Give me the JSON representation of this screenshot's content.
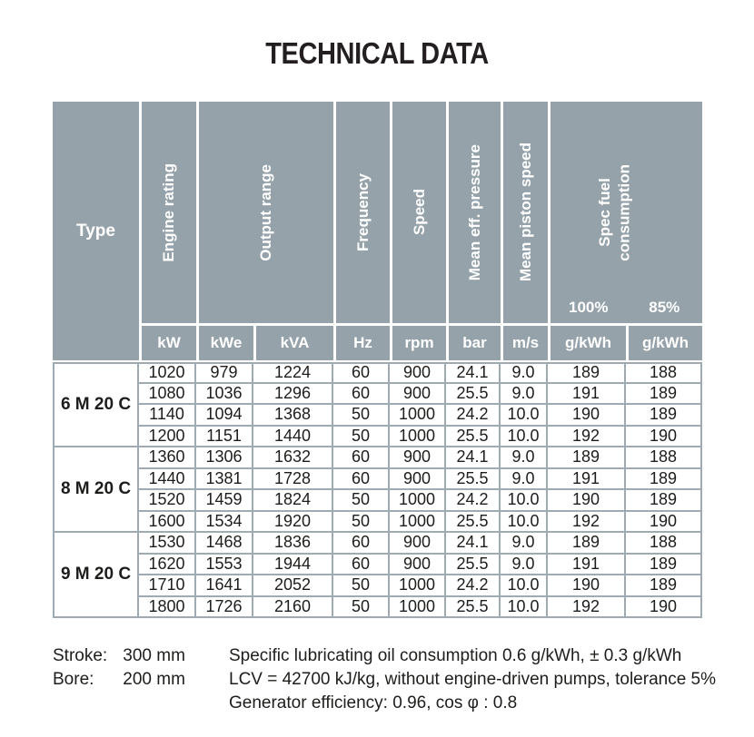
{
  "title": "TECHNICAL DATA",
  "colors": {
    "header_background": "#95a2aa",
    "grid_border": "#9fabb2",
    "header_text": "#ffffff",
    "body_text": "#1d1d1b"
  },
  "table": {
    "header": {
      "type": "Type",
      "engine_rating": "Engine rating",
      "output_range": "Output range",
      "frequency": "Frequency",
      "speed": "Speed",
      "mean_eff_pressure": "Mean eff. pressure",
      "mean_piston_speed": "Mean piston speed",
      "spec_fuel_line1": "Spec fuel",
      "spec_fuel_line2": "consumption",
      "load_100": "100%",
      "load_85": "85%",
      "units": [
        "kW",
        "kWe",
        "kVA",
        "Hz",
        "rpm",
        "bar",
        "m/s",
        "g/kWh",
        "g/kWh"
      ]
    },
    "groups": [
      {
        "type": "6 M 20 C",
        "rows": [
          [
            "1020",
            "979",
            "1224",
            "60",
            "900",
            "24.1",
            "9.0",
            "189",
            "188"
          ],
          [
            "1080",
            "1036",
            "1296",
            "60",
            "900",
            "25.5",
            "9.0",
            "191",
            "189"
          ],
          [
            "1140",
            "1094",
            "1368",
            "50",
            "1000",
            "24.2",
            "10.0",
            "190",
            "189"
          ],
          [
            "1200",
            "1151",
            "1440",
            "50",
            "1000",
            "25.5",
            "10.0",
            "192",
            "190"
          ]
        ]
      },
      {
        "type": "8 M 20 C",
        "rows": [
          [
            "1360",
            "1306",
            "1632",
            "60",
            "900",
            "24.1",
            "9.0",
            "189",
            "188"
          ],
          [
            "1440",
            "1381",
            "1728",
            "60",
            "900",
            "25.5",
            "9.0",
            "191",
            "189"
          ],
          [
            "1520",
            "1459",
            "1824",
            "50",
            "1000",
            "24.2",
            "10.0",
            "190",
            "189"
          ],
          [
            "1600",
            "1534",
            "1920",
            "50",
            "1000",
            "25.5",
            "10.0",
            "192",
            "190"
          ]
        ]
      },
      {
        "type": "9 M 20 C",
        "rows": [
          [
            "1530",
            "1468",
            "1836",
            "60",
            "900",
            "24.1",
            "9.0",
            "189",
            "188"
          ],
          [
            "1620",
            "1553",
            "1944",
            "60",
            "900",
            "25.5",
            "9.0",
            "191",
            "189"
          ],
          [
            "1710",
            "1641",
            "2052",
            "50",
            "1000",
            "24.2",
            "10.0",
            "190",
            "189"
          ],
          [
            "1800",
            "1726",
            "2160",
            "50",
            "1000",
            "25.5",
            "10.0",
            "192",
            "190"
          ]
        ]
      }
    ]
  },
  "footnotes": {
    "stroke_label": "Stroke:",
    "stroke_value": "300 mm",
    "bore_label": "Bore:",
    "bore_value": "200 mm",
    "notes": [
      "Specific lubricating oil consumption 0.6 g/kWh, ± 0.3 g/kWh",
      "LCV = 42700 kJ/kg, without engine-driven pumps, tolerance 5%",
      "Generator efficiency: 0.96, cos φ : 0.8"
    ]
  }
}
